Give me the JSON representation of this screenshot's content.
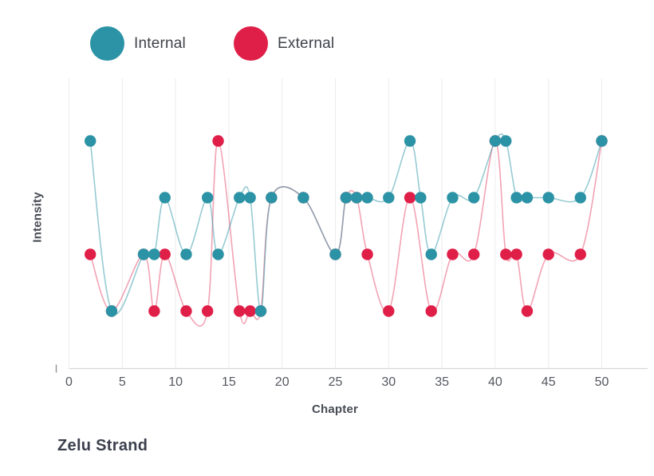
{
  "title": "Zelu Strand",
  "legend": {
    "internal_label": "Internal",
    "external_label": "External"
  },
  "axes": {
    "x_label": "Chapter",
    "y_label": "Intensity",
    "x_ticks": [
      "0",
      "5",
      "10",
      "15",
      "20",
      "25",
      "30",
      "35",
      "40",
      "45",
      "50"
    ]
  },
  "colors": {
    "internal": "#2b93a5",
    "internal_line": "rgba(47,151,168,0.5)",
    "external": "#e01f48",
    "external_line": "rgba(224,36,77,0.42)",
    "gridline": "#ececec",
    "axis_line": "#d8d8dc",
    "tick_text": "#55585f",
    "title_text": "#3b404d"
  },
  "chart_data": {
    "type": "line",
    "title": "Zelu Strand",
    "xlabel": "Chapter",
    "ylabel": "Intensity",
    "xlim": [
      0,
      50
    ],
    "ylim": [
      0,
      5
    ],
    "x_ticks": [
      0,
      5,
      10,
      15,
      20,
      25,
      30,
      35,
      40,
      45,
      50
    ],
    "y_tick_labels_shown": false,
    "grid": "vertical-only",
    "legend_position": "top-left",
    "curve": "catmull-rom-smooth",
    "series": [
      {
        "name": "Internal",
        "color": "#2b93a5",
        "line_color": "rgba(47,151,168,0.5)",
        "points": [
          [
            2,
            4
          ],
          [
            4,
            1
          ],
          [
            7,
            2
          ],
          [
            8,
            2
          ],
          [
            9,
            3
          ],
          [
            11,
            2
          ],
          [
            13,
            3
          ],
          [
            14,
            2
          ],
          [
            16,
            3
          ],
          [
            17,
            3
          ],
          [
            18,
            1
          ],
          [
            19,
            3
          ],
          [
            22,
            3
          ],
          [
            25,
            2
          ],
          [
            26,
            3
          ],
          [
            27,
            3
          ],
          [
            28,
            3
          ],
          [
            30,
            3
          ],
          [
            32,
            4
          ],
          [
            33,
            3
          ],
          [
            34,
            2
          ],
          [
            36,
            3
          ],
          [
            38,
            3
          ],
          [
            40,
            4
          ],
          [
            41,
            4
          ],
          [
            42,
            3
          ],
          [
            43,
            3
          ],
          [
            45,
            3
          ],
          [
            48,
            3
          ],
          [
            50,
            4
          ]
        ]
      },
      {
        "name": "External",
        "color": "#e01f48",
        "line_color": "rgba(224,36,77,0.42)",
        "points": [
          [
            2,
            2
          ],
          [
            4,
            1
          ],
          [
            7,
            2
          ],
          [
            8,
            1
          ],
          [
            9,
            2
          ],
          [
            11,
            1
          ],
          [
            13,
            1
          ],
          [
            14,
            4
          ],
          [
            16,
            1
          ],
          [
            17,
            1
          ],
          [
            18,
            1
          ],
          [
            19,
            3
          ],
          [
            22,
            3
          ],
          [
            25,
            2
          ],
          [
            26,
            3
          ],
          [
            27,
            3
          ],
          [
            28,
            2
          ],
          [
            30,
            1
          ],
          [
            32,
            3
          ],
          [
            34,
            1
          ],
          [
            36,
            2
          ],
          [
            38,
            2
          ],
          [
            40,
            4
          ],
          [
            41,
            2
          ],
          [
            42,
            2
          ],
          [
            43,
            1
          ],
          [
            45,
            2
          ],
          [
            48,
            2
          ],
          [
            50,
            4
          ]
        ],
        "markers_hidden_under_internal_at_x": [
          4,
          7,
          18,
          19,
          22,
          25,
          26,
          27,
          40,
          50
        ]
      }
    ]
  }
}
